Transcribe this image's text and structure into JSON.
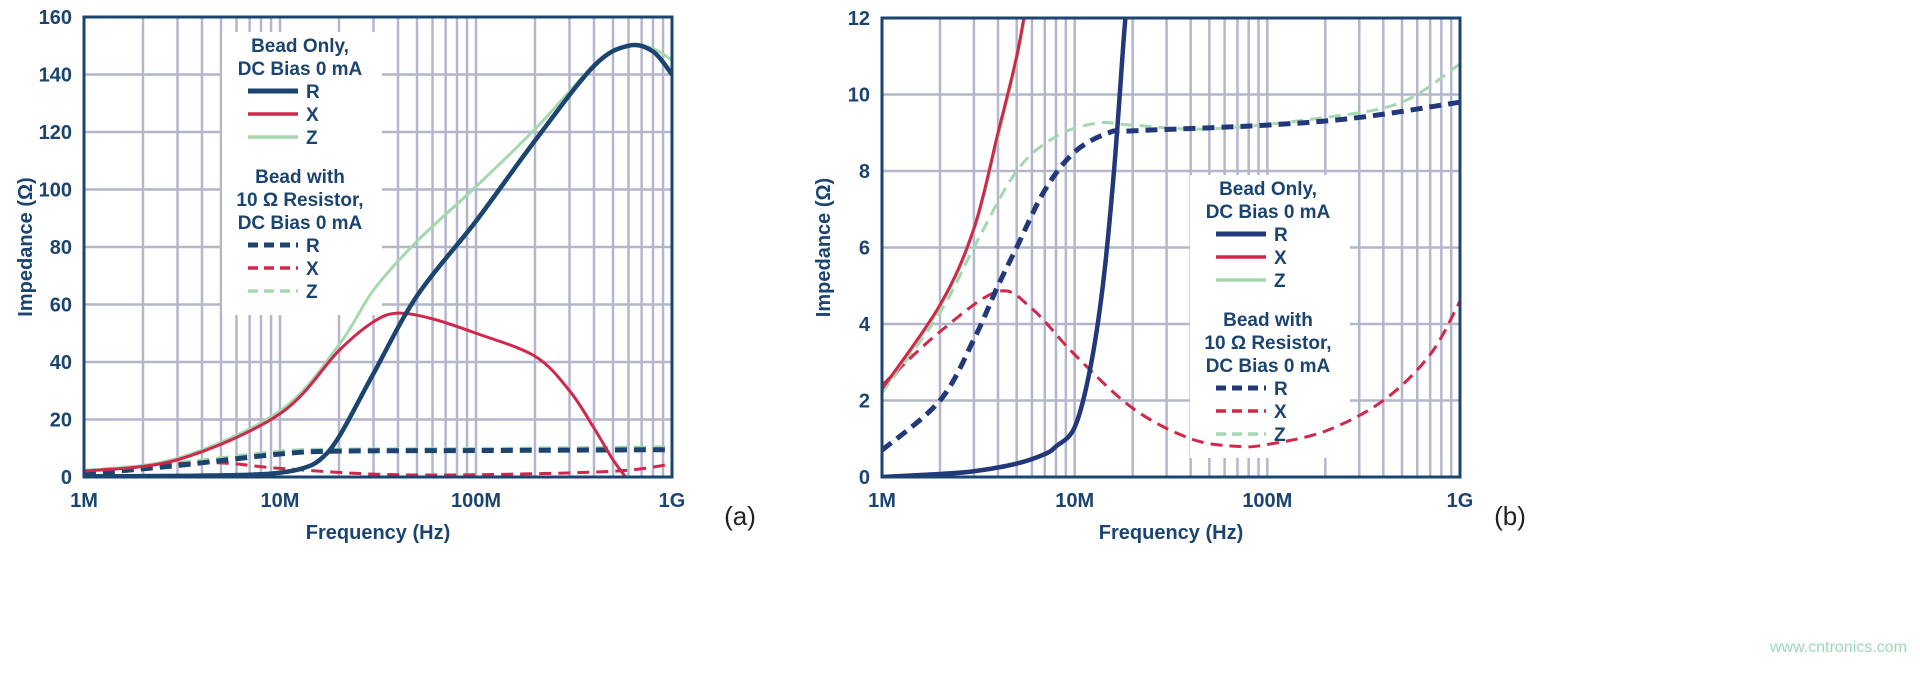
{
  "colors": {
    "text": "#1b4470",
    "grid": "#b4b6cc",
    "R_a": "#1b4470",
    "R_b": "#22387a",
    "X": "#d0284a",
    "Z": "#a6d8b0"
  },
  "watermark": "www.cntronics.com",
  "chart_data": [
    {
      "type": "line",
      "panel_label": "(a)",
      "xlabel": "Frequency (Hz)",
      "ylabel": "Impedance (Ω)",
      "xscale": "log",
      "xlim": [
        1000000,
        1000000000
      ],
      "ylim": [
        0,
        160
      ],
      "xticks": [
        {
          "v": 1000000,
          "label": "1M"
        },
        {
          "v": 10000000,
          "label": "10M"
        },
        {
          "v": 100000000,
          "label": "100M"
        },
        {
          "v": 1000000000,
          "label": "1G"
        }
      ],
      "yticks": [
        0,
        20,
        40,
        60,
        80,
        100,
        120,
        140,
        160
      ],
      "grid": true,
      "legend_placement": "top-center",
      "legend": {
        "group1_title": [
          "Bead Only,",
          "DC Bias 0 mA"
        ],
        "group2_title": [
          "Bead with",
          "10 Ω Resistor,",
          "DC Bias 0 mA"
        ],
        "entries": [
          "R",
          "X",
          "Z"
        ]
      },
      "series": [
        {
          "group": 1,
          "name": "R",
          "style": "solid",
          "color": "#1b4470",
          "x": [
            1000000.0,
            3000000.0,
            7000000.0,
            10000000.0,
            13000000.0,
            16000000.0,
            20000000.0,
            30000000.0,
            50000000.0,
            100000000.0,
            200000000.0,
            400000000.0,
            600000000.0,
            800000000.0,
            1000000000.0
          ],
          "y": [
            0.2,
            0.4,
            0.8,
            1.5,
            3,
            6,
            14,
            36,
            63,
            89,
            117,
            143,
            150,
            148,
            140
          ]
        },
        {
          "group": 1,
          "name": "X",
          "style": "solid",
          "color": "#d0284a",
          "x": [
            1000000.0,
            3000000.0,
            10000000.0,
            20000000.0,
            30000000.0,
            40000000.0,
            60000000.0,
            100000000.0,
            200000000.0,
            300000000.0,
            400000000.0,
            500000000.0,
            580000000.0
          ],
          "y": [
            2,
            6,
            22,
            44,
            54,
            57,
            55,
            50,
            42,
            30,
            17,
            6,
            0
          ]
        },
        {
          "group": 1,
          "name": "Z",
          "style": "solid",
          "color": "#a6d8b0",
          "x": [
            1000000.0,
            3000000.0,
            10000000.0,
            20000000.0,
            30000000.0,
            50000000.0,
            100000000.0,
            200000000.0,
            400000000.0,
            600000000.0,
            800000000.0,
            1000000000.0
          ],
          "y": [
            2.2,
            6.5,
            23,
            46,
            65,
            82,
            101,
            121,
            143,
            150,
            149,
            145
          ]
        },
        {
          "group": 2,
          "name": "R",
          "style": "dashed",
          "color": "#1b4470",
          "x": [
            1000000.0,
            3000000.0,
            10000000.0,
            20000000.0,
            100000000.0,
            1000000000.0
          ],
          "y": [
            1,
            4,
            8,
            9,
            9.2,
            9.5
          ]
        },
        {
          "group": 2,
          "name": "X",
          "style": "dashed",
          "color": "#d0284a",
          "x": [
            1000000.0,
            4000000.0,
            10000000.0,
            30000000.0,
            100000000.0,
            500000000.0,
            1000000000.0
          ],
          "y": [
            2,
            5,
            3,
            1,
            0.8,
            2,
            4.5
          ]
        },
        {
          "group": 2,
          "name": "Z",
          "style": "dashed",
          "color": "#a6d8b0",
          "x": [
            1000000.0,
            3000000.0,
            10000000.0,
            20000000.0,
            100000000.0,
            1000000000.0
          ],
          "y": [
            2.3,
            5,
            9,
            9.7,
            9.9,
            10.5
          ]
        }
      ]
    },
    {
      "type": "line",
      "panel_label": "(b)",
      "xlabel": "Frequency (Hz)",
      "ylabel": "Impedance (Ω)",
      "xscale": "log",
      "xlim": [
        1000000,
        1000000000
      ],
      "ylim": [
        0,
        12
      ],
      "xticks": [
        {
          "v": 1000000,
          "label": "1M"
        },
        {
          "v": 10000000,
          "label": "10M"
        },
        {
          "v": 100000000,
          "label": "100M"
        },
        {
          "v": 1000000000,
          "label": "1G"
        }
      ],
      "yticks": [
        0,
        2,
        4,
        6,
        8,
        10,
        12
      ],
      "grid": true,
      "legend_placement": "center",
      "legend": {
        "group1_title": [
          "Bead Only,",
          "DC Bias 0 mA"
        ],
        "group2_title": [
          "Bead with",
          "10 Ω Resistor,",
          "DC Bias 0 mA"
        ],
        "entries": [
          "R",
          "X",
          "Z"
        ]
      },
      "series": [
        {
          "group": 1,
          "name": "R",
          "style": "solid",
          "color": "#22387a",
          "x": [
            1000000.0,
            2000000.0,
            3000000.0,
            5000000.0,
            7000000.0,
            8000000.0,
            10000000.0,
            12000000.0,
            14000000.0,
            16000000.0,
            18000000.0,
            19000000.0
          ],
          "y": [
            0,
            0.08,
            0.15,
            0.35,
            0.6,
            0.8,
            1.3,
            2.8,
            5,
            8,
            11.5,
            13
          ]
        },
        {
          "group": 1,
          "name": "X",
          "style": "solid",
          "color": "#d0284a",
          "x": [
            1000000.0,
            2000000.0,
            3000000.0,
            4000000.0,
            5000000.0,
            5800000.0
          ],
          "y": [
            2.3,
            4.5,
            6.5,
            9,
            11,
            12.8
          ]
        },
        {
          "group": 1,
          "name": "Z",
          "style": "solid",
          "color": "#a6d8b0",
          "x": [
            1000000.0,
            2000000.0,
            3000000.0,
            4000000.0,
            5000000.0,
            5800000.0
          ],
          "y": [
            2.25,
            4.45,
            6.45,
            8.9,
            10.9,
            12.7
          ]
        },
        {
          "group": 2,
          "name": "R",
          "style": "dashed",
          "color": "#22387a",
          "x": [
            1000000.0,
            2000000.0,
            3000000.0,
            4000000.0,
            5000000.0,
            7000000.0,
            10000000.0,
            15000000.0,
            20000000.0,
            100000000.0,
            300000000.0,
            1000000000.0
          ],
          "y": [
            0.7,
            2,
            3.6,
            5,
            6,
            7.5,
            8.5,
            9,
            9.05,
            9.2,
            9.4,
            9.8
          ]
        },
        {
          "group": 2,
          "name": "X",
          "style": "dashed",
          "color": "#d0284a",
          "x": [
            1000000.0,
            2000000.0,
            4000000.0,
            6000000.0,
            10000000.0,
            20000000.0,
            40000000.0,
            70000000.0,
            100000000.0,
            200000000.0,
            400000000.0,
            700000000.0,
            1000000000.0
          ],
          "y": [
            2.4,
            3.8,
            4.85,
            4.4,
            3.2,
            1.8,
            1.0,
            0.8,
            0.85,
            1.2,
            2.0,
            3.2,
            4.6
          ]
        },
        {
          "group": 2,
          "name": "Z",
          "style": "dashed",
          "color": "#a6d8b0",
          "x": [
            1000000.0,
            2000000.0,
            3000000.0,
            5000000.0,
            8000000.0,
            13000000.0,
            20000000.0,
            50000000.0,
            200000000.0,
            500000000.0,
            1000000000.0
          ],
          "y": [
            2.2,
            4.3,
            6,
            8,
            8.9,
            9.25,
            9.2,
            9.1,
            9.4,
            9.8,
            10.8
          ]
        }
      ]
    }
  ]
}
